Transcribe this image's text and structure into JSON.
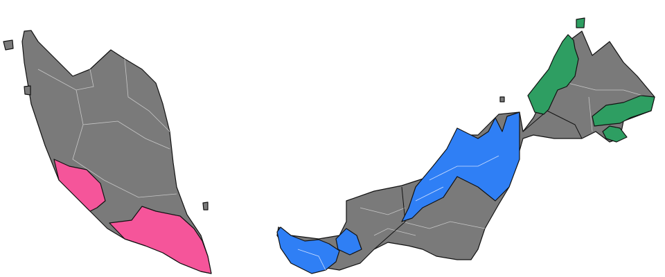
{
  "map": {
    "colors": {
      "base": "#7a7a7a",
      "pink": "#f5559a",
      "blue": "#2f7ff5",
      "green": "#2e9e62",
      "border": "#111111",
      "inner_border": "#c8c8c8"
    },
    "regions": [
      {
        "name": "peninsular-malaysia",
        "fill": "base"
      },
      {
        "name": "peninsular-west-coast-highlight",
        "fill": "pink"
      },
      {
        "name": "peninsular-south-highlight",
        "fill": "pink"
      },
      {
        "name": "borneo-malaysia",
        "fill": "base"
      },
      {
        "name": "sarawak-west-highlight",
        "fill": "blue"
      },
      {
        "name": "sarawak-central-highlight",
        "fill": "blue"
      },
      {
        "name": "sabah-west-coast-highlight",
        "fill": "green"
      },
      {
        "name": "sabah-east-highlight",
        "fill": "green"
      },
      {
        "name": "sabah-southeast-highlight",
        "fill": "green"
      }
    ]
  }
}
